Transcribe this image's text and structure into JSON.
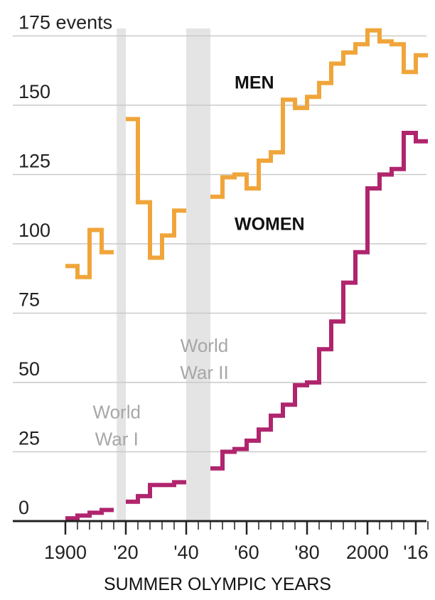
{
  "chart_data": {
    "type": "line",
    "step": true,
    "xlabel": "SUMMER OLYMPIC YEARS",
    "ylim": [
      0,
      175
    ],
    "xlim": [
      1900,
      2020
    ],
    "y_ticks": [
      0,
      25,
      50,
      75,
      100,
      125,
      150,
      175
    ],
    "y_tick_labels": [
      "0",
      "25",
      "50",
      "75",
      "100",
      "125",
      "150",
      "175 events"
    ],
    "x_tick_labels": [
      {
        "x": 1900,
        "label": "1900"
      },
      {
        "x": 1920,
        "label": "'20"
      },
      {
        "x": 1940,
        "label": "'40"
      },
      {
        "x": 1960,
        "label": "'60"
      },
      {
        "x": 1980,
        "label": "'80"
      },
      {
        "x": 2000,
        "label": "2000"
      },
      {
        "x": 2016,
        "label": "'16"
      }
    ],
    "grid": "horizontal",
    "shaded_periods": [
      {
        "label_lines": [
          "World",
          "War I"
        ],
        "start": 1917,
        "end": 1920,
        "label_x": 1917,
        "label_y": 37
      },
      {
        "label_lines": [
          "World",
          "War II"
        ],
        "start": 1940,
        "end": 1948,
        "label_x": 1946,
        "label_y": 61
      }
    ],
    "series": [
      {
        "name": "MEN",
        "color": "#f0a53a",
        "label_x": 1956,
        "label_y": 156,
        "segments": [
          {
            "x": [
              1900,
              1904,
              1908,
              1912,
              1916
            ],
            "y": [
              92,
              88,
              105,
              97,
              97
            ]
          },
          {
            "x": [
              1920,
              1924,
              1928,
              1932,
              1936,
              1940
            ],
            "y": [
              145,
              115,
              95,
              103,
              112,
              112
            ]
          },
          {
            "x": [
              1948,
              1952,
              1956,
              1960,
              1964,
              1968,
              1972,
              1976,
              1980,
              1984,
              1988,
              1992,
              1996,
              2000,
              2004,
              2008,
              2012,
              2016,
              2020
            ],
            "y": [
              117,
              124,
              125,
              120,
              130,
              133,
              152,
              149,
              153,
              158,
              165,
              169,
              172,
              177,
              173,
              172,
              162,
              168,
              168
            ]
          }
        ]
      },
      {
        "name": "WOMEN",
        "color": "#b0256d",
        "label_x": 1956,
        "label_y": 105,
        "segments": [
          {
            "x": [
              1900,
              1904,
              1908,
              1912,
              1916
            ],
            "y": [
              1,
              2,
              3,
              4,
              4
            ]
          },
          {
            "x": [
              1920,
              1924,
              1928,
              1932,
              1936,
              1940
            ],
            "y": [
              7,
              9,
              13,
              13,
              14,
              14
            ]
          },
          {
            "x": [
              1948,
              1952,
              1956,
              1960,
              1964,
              1968,
              1972,
              1976,
              1980,
              1984,
              1988,
              1992,
              1996,
              2000,
              2004,
              2008,
              2012,
              2016,
              2020
            ],
            "y": [
              19,
              25,
              26,
              29,
              33,
              38,
              42,
              49,
              50,
              62,
              72,
              86,
              97,
              120,
              125,
              127,
              140,
              137,
              137
            ]
          }
        ]
      }
    ]
  }
}
